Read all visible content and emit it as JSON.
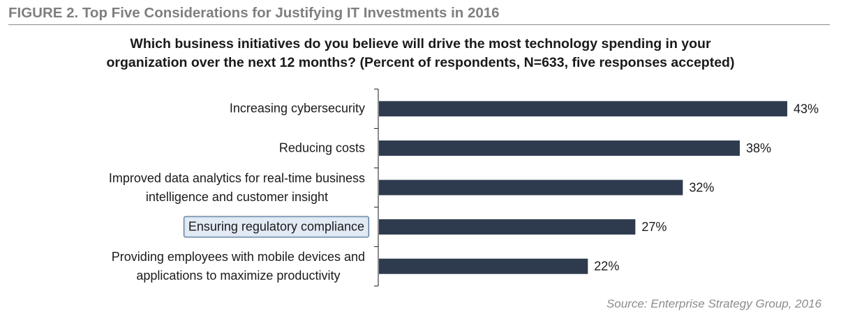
{
  "figure": {
    "title": "FIGURE 2. Top Five Considerations for Justifying IT Investments in 2016",
    "question_line1": "Which business initiatives do you believe will drive the most technology spending in your",
    "question_line2": "organization over the next 12 months? (Percent of respondents, N=633, five responses accepted)",
    "source": "Source: Enterprise Strategy Group, 2016"
  },
  "chart_data": {
    "type": "bar",
    "orientation": "horizontal",
    "categories": [
      "Increasing cybersecurity",
      "Reducing costs",
      "Improved data analytics for real-time business\nintelligence and customer insight",
      "Ensuring regulatory compliance",
      "Providing  employees with mobile devices and\napplications to maximize productivity"
    ],
    "values": [
      43,
      38,
      32,
      27,
      22
    ],
    "value_labels": [
      "43%",
      "38%",
      "32%",
      "27%",
      "22%"
    ],
    "highlighted_category_index": 3,
    "xlim": [
      0,
      43
    ],
    "grid": false,
    "legend": "none",
    "bar_color": "#2e3b4e"
  }
}
